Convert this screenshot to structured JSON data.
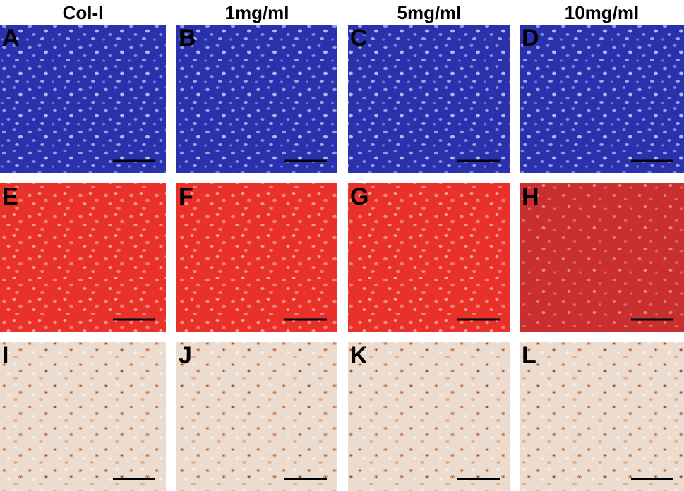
{
  "columns": [
    "Col-I",
    "1mg/ml",
    "5mg/ml",
    "10mg/ml"
  ],
  "panels": [
    [
      "A",
      "B",
      "C",
      "D"
    ],
    [
      "E",
      "F",
      "G",
      "H"
    ],
    [
      "I",
      "J",
      "K",
      "L"
    ]
  ]
}
